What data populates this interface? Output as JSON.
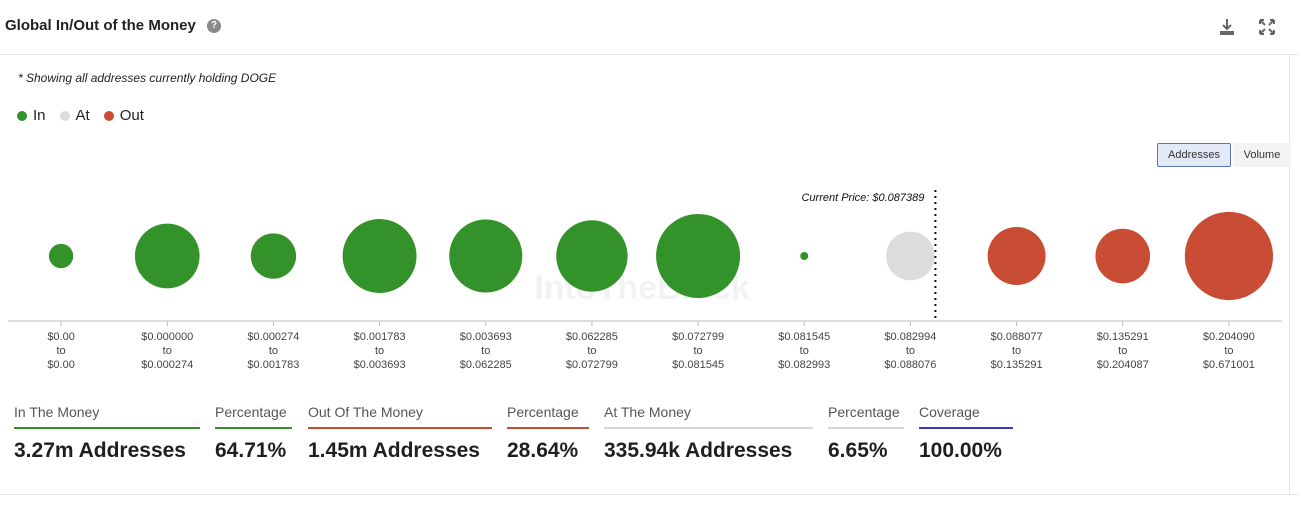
{
  "header": {
    "title": "Global In/Out of the Money",
    "help_icon": "question-circle-icon",
    "download_icon": "download-icon",
    "expand_icon": "expand-icon"
  },
  "subtitle": "* Showing all addresses currently holding DOGE",
  "legend": [
    {
      "label": "In",
      "color": "#34922a"
    },
    {
      "label": "At",
      "color": "#dcdcdc"
    },
    {
      "label": "Out",
      "color": "#c94d35"
    }
  ],
  "toggles": {
    "addresses": "Addresses",
    "volume": "Volume",
    "active": "Addresses"
  },
  "chart_data": {
    "type": "bubble",
    "current_price_label": "Current Price: $0.087389",
    "current_price": 0.087389,
    "watermark": "IntoTheBlock",
    "buckets": [
      {
        "from": "$0.00",
        "to": "$0.00",
        "status": "in"
      },
      {
        "from": "$0.000000",
        "to": "$0.000274",
        "status": "in"
      },
      {
        "from": "$0.000274",
        "to": "$0.001783",
        "status": "in"
      },
      {
        "from": "$0.001783",
        "to": "$0.003693",
        "status": "in"
      },
      {
        "from": "$0.003693",
        "to": "$0.062285",
        "status": "in"
      },
      {
        "from": "$0.062285",
        "to": "$0.072799",
        "status": "in"
      },
      {
        "from": "$0.072799",
        "to": "$0.081545",
        "status": "in"
      },
      {
        "from": "$0.081545",
        "to": "$0.082993",
        "status": "in"
      },
      {
        "from": "$0.082994",
        "to": "$0.088076",
        "status": "at"
      },
      {
        "from": "$0.088077",
        "to": "$0.135291",
        "status": "out"
      },
      {
        "from": "$0.135291",
        "to": "$0.204087",
        "status": "out"
      },
      {
        "from": "$0.204090",
        "to": "$0.671001",
        "status": "out"
      }
    ],
    "relative_sizes": [
      0.29,
      0.77,
      0.54,
      0.88,
      0.87,
      0.85,
      1.0,
      0.05,
      0.58,
      0.69,
      0.65,
      1.05
    ],
    "range_connector": "to"
  },
  "stats": [
    {
      "label": "In The Money",
      "value": "3.27m Addresses",
      "color": "#34922a"
    },
    {
      "label": "Percentage",
      "value": "64.71%",
      "color": "#34922a"
    },
    {
      "label": "Out Of The Money",
      "value": "1.45m Addresses",
      "color": "#c94d35"
    },
    {
      "label": "Percentage",
      "value": "28.64%",
      "color": "#c94d35"
    },
    {
      "label": "At The Money",
      "value": "335.94k Addresses",
      "color": "#d6d6d6"
    },
    {
      "label": "Percentage",
      "value": "6.65%",
      "color": "#d6d6d6"
    },
    {
      "label": "Coverage",
      "value": "100.00%",
      "color": "#3a3ac4"
    }
  ]
}
